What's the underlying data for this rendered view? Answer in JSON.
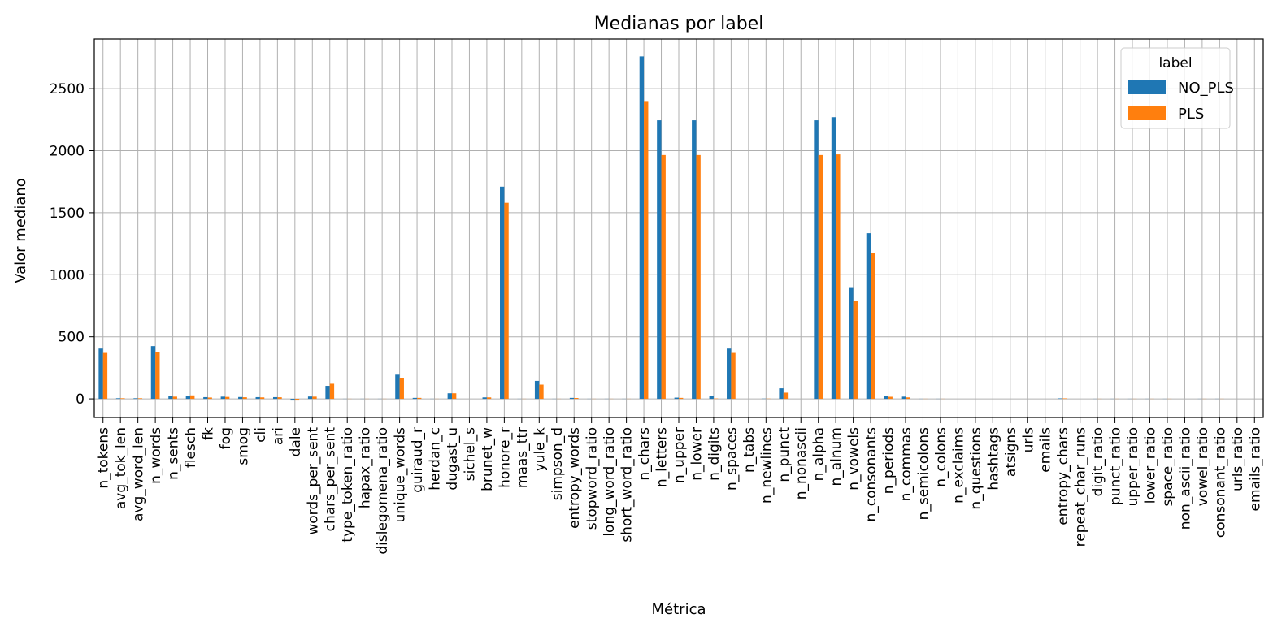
{
  "chart_data": {
    "type": "bar",
    "title": "Medianas por label",
    "xlabel": "Métrica",
    "ylabel": "Valor mediano",
    "ylim": [
      -150,
      2900
    ],
    "yticks": [
      0,
      500,
      1000,
      1500,
      2000,
      2500
    ],
    "grid": true,
    "legend": {
      "title": "label",
      "position": "top-right"
    },
    "categories": [
      "n_tokens",
      "avg_tok_len",
      "avg_word_len",
      "n_words",
      "n_sents",
      "flesch",
      "fk",
      "fog",
      "smog",
      "cli",
      "ari",
      "dale",
      "words_per_sent",
      "chars_per_sent",
      "type_token_ratio",
      "hapax_ratio",
      "dislegomena_ratio",
      "unique_words",
      "guiraud_r",
      "herdan_c",
      "dugast_u",
      "sichel_s",
      "brunet_w",
      "honore_r",
      "maas_ttr",
      "yule_k",
      "simpson_d",
      "entropy_words",
      "stopword_ratio",
      "long_word_ratio",
      "short_word_ratio",
      "n_chars",
      "n_letters",
      "n_upper",
      "n_lower",
      "n_digits",
      "n_spaces",
      "n_tabs",
      "n_newlines",
      "n_punct",
      "n_nonascii",
      "n_alpha",
      "n_alnum",
      "n_vowels",
      "n_consonants",
      "n_periods",
      "n_commas",
      "n_semicolons",
      "n_colons",
      "n_exclaims",
      "n_questions",
      "hashtags",
      "atsigns",
      "urls",
      "emails",
      "entropy_chars",
      "repeat_char_runs",
      "digit_ratio",
      "punct_ratio",
      "upper_ratio",
      "lower_ratio",
      "space_ratio",
      "non_ascii_ratio",
      "vowel_ratio",
      "consonant_ratio",
      "urls_ratio",
      "emails_ratio"
    ],
    "series": [
      {
        "name": "NO_PLS",
        "color": "#1f77b4",
        "values": [
          405,
          5,
          5,
          425,
          25,
          25,
          14,
          18,
          15,
          14,
          14,
          -13,
          19,
          105,
          1,
          1,
          1,
          195,
          8,
          1,
          45,
          0,
          12,
          1710,
          1,
          145,
          1,
          8,
          1,
          1,
          1,
          2760,
          2245,
          10,
          2245,
          25,
          405,
          0,
          2,
          85,
          0,
          2245,
          2270,
          900,
          1335,
          25,
          18,
          1,
          1,
          0,
          0,
          0,
          0,
          0,
          0,
          4,
          0,
          1,
          1,
          1,
          1,
          1,
          0,
          1,
          1,
          0,
          0
        ]
      },
      {
        "name": "PLS",
        "color": "#ff7f0e",
        "values": [
          370,
          5,
          5,
          380,
          18,
          28,
          11,
          16,
          13,
          12,
          13,
          -13,
          18,
          122,
          1,
          1,
          1,
          170,
          8,
          1,
          45,
          0,
          12,
          1580,
          1,
          115,
          1,
          7,
          1,
          1,
          1,
          2400,
          1965,
          8,
          1965,
          3,
          370,
          0,
          2,
          50,
          0,
          1965,
          1970,
          790,
          1175,
          17,
          12,
          1,
          1,
          0,
          0,
          0,
          0,
          0,
          0,
          4,
          0,
          1,
          1,
          1,
          1,
          1,
          0,
          1,
          1,
          0,
          0
        ]
      }
    ]
  }
}
